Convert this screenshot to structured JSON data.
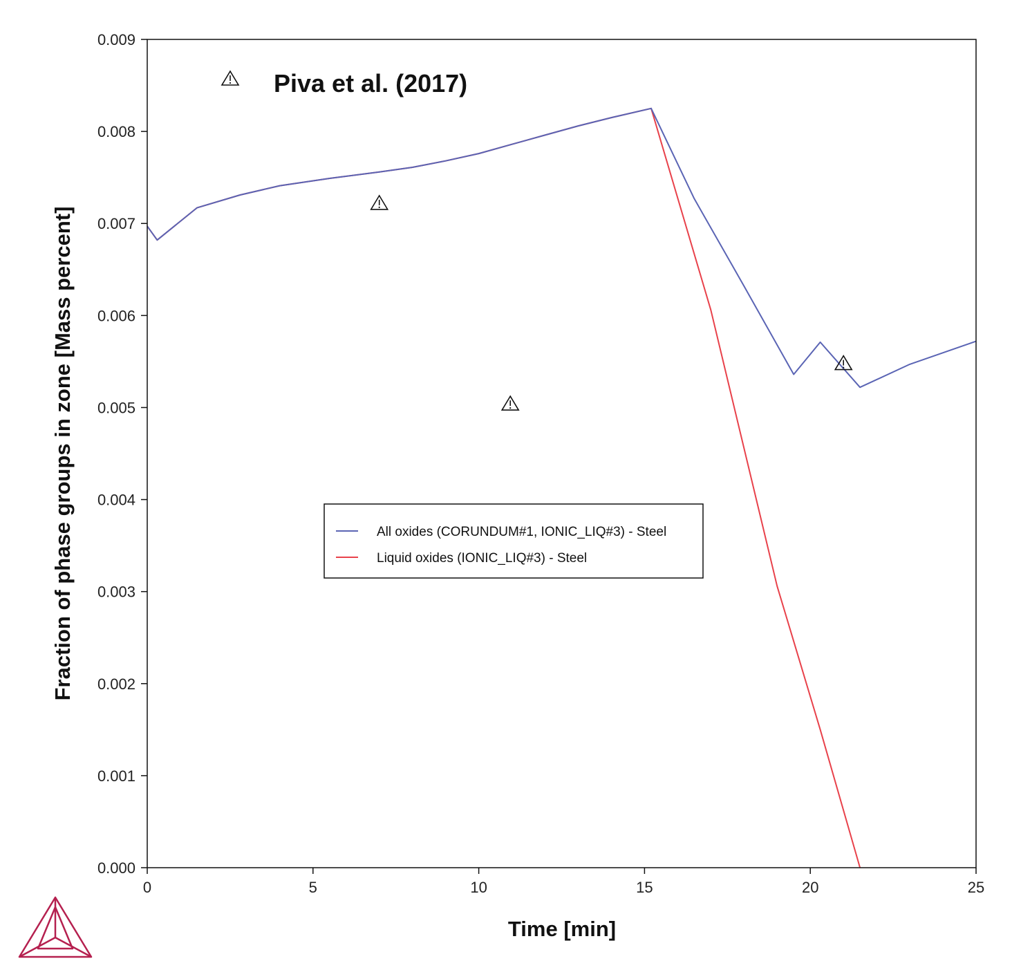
{
  "chart_data": {
    "type": "line",
    "xlabel": "Time [min]",
    "ylabel": "Fraction of phase groups in zone [Mass percent]",
    "xlim": [
      0,
      25
    ],
    "ylim": [
      0,
      0.009
    ],
    "xticks": [
      0,
      5,
      10,
      15,
      20,
      25
    ],
    "xtick_labels": [
      "0",
      "5",
      "10",
      "15",
      "20",
      "25"
    ],
    "yticks": [
      0,
      0.001,
      0.002,
      0.003,
      0.004,
      0.005,
      0.006,
      0.007,
      0.008,
      0.009
    ],
    "ytick_labels": [
      "0.000",
      "0.001",
      "0.002",
      "0.003",
      "0.004",
      "0.005",
      "0.006",
      "0.007",
      "0.008",
      "0.009"
    ],
    "grid": false,
    "legend_position": "center",
    "series": [
      {
        "name": "All oxides (CORUNDUM#1, IONIC_LIQ#3) - Steel",
        "color": "#5a64b4",
        "x": [
          0,
          0.3,
          1.5,
          2.8,
          4.0,
          5.5,
          7.0,
          8.0,
          9.0,
          10.0,
          11.0,
          12.0,
          13.0,
          14.0,
          15.2,
          16.5,
          18.0,
          19.5,
          20.3,
          21.5,
          23.0,
          25.0
        ],
        "y": [
          0.00697,
          0.00682,
          0.00717,
          0.00731,
          0.00741,
          0.00749,
          0.00756,
          0.00761,
          0.00768,
          0.00776,
          0.00786,
          0.00796,
          0.00806,
          0.00815,
          0.00825,
          0.00727,
          0.00632,
          0.00536,
          0.00571,
          0.00522,
          0.00547,
          0.00572
        ]
      },
      {
        "name": "Liquid oxides (IONIC_LIQ#3) - Steel",
        "color": "#e8414a",
        "x": [
          0,
          0.3,
          1.5,
          2.8,
          4.0,
          5.5,
          7.0,
          8.0,
          9.0,
          10.0,
          11.0,
          12.0,
          13.0,
          14.0,
          15.2,
          17.0,
          19.0,
          20.3,
          21.5
        ],
        "y": [
          0.00697,
          0.00682,
          0.00717,
          0.00731,
          0.00741,
          0.00749,
          0.00756,
          0.00761,
          0.00768,
          0.00776,
          0.00786,
          0.00796,
          0.00806,
          0.00815,
          0.00825,
          0.00606,
          0.00306,
          0.0015,
          0.0
        ]
      }
    ],
    "experimental": {
      "name": "Piva et al. (2017)",
      "marker": "warning-triangle",
      "x": [
        7.0,
        10.95,
        21.0
      ],
      "y": [
        0.00722,
        0.00504,
        0.00548
      ]
    }
  }
}
